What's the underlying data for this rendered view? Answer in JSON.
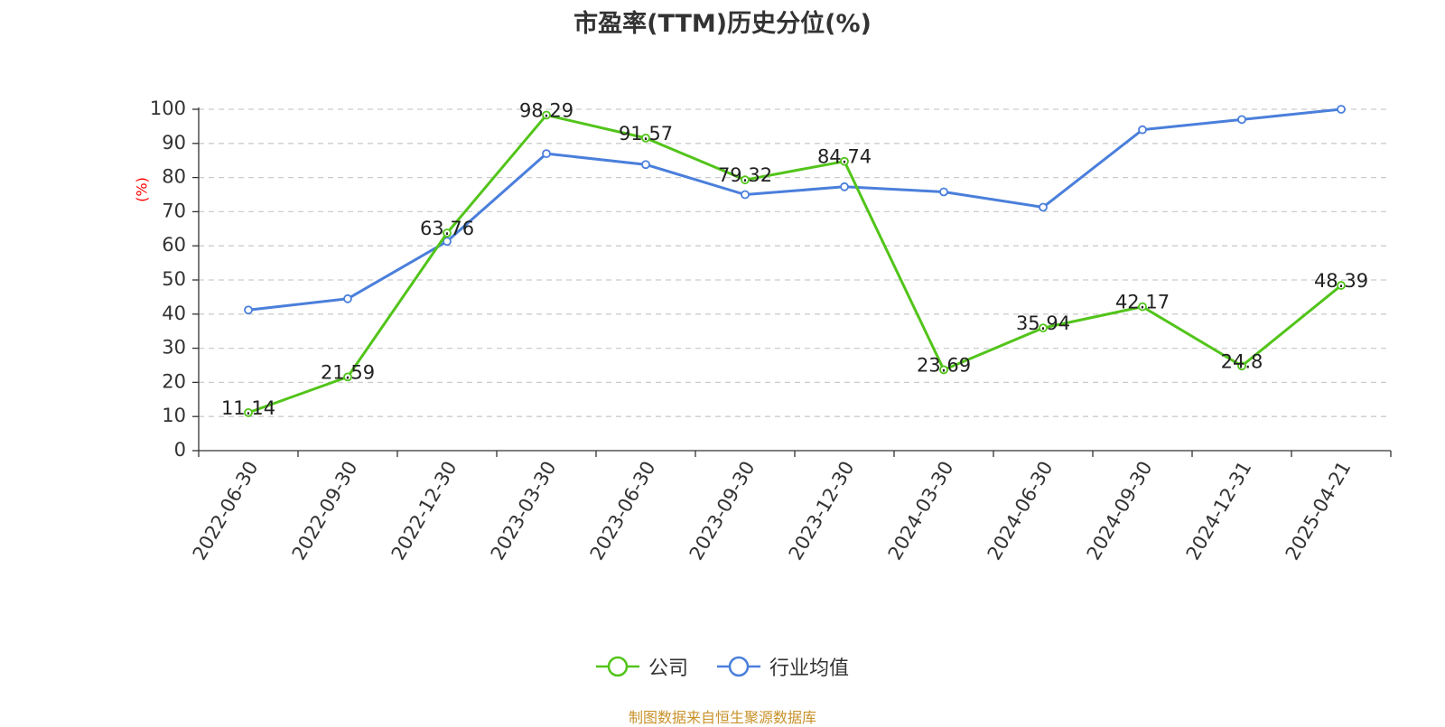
{
  "title": "市盈率(TTM)历史分位(%)",
  "source": "制图数据来自恒生聚源数据库",
  "colors": {
    "company": "#52c41a",
    "industry": "#4a7fdb",
    "y_unit": "#ff0000",
    "axis": "#333333",
    "grid": "#cccccc",
    "source": "#c8922a"
  },
  "chart_data": {
    "type": "line",
    "title": "市盈率(TTM)历史分位(%)",
    "ylabel": "(%)",
    "xlabel": "",
    "ylim": [
      0,
      100
    ],
    "yticks": [
      0,
      10,
      20,
      30,
      40,
      50,
      60,
      70,
      80,
      90,
      100
    ],
    "grid": true,
    "legend_position": "bottom",
    "categories": [
      "2022-06-30",
      "2022-09-30",
      "2022-12-30",
      "2023-03-30",
      "2023-06-30",
      "2023-09-30",
      "2023-12-30",
      "2024-03-30",
      "2024-06-30",
      "2024-09-30",
      "2024-12-31",
      "2025-04-21"
    ],
    "series": [
      {
        "name": "公司",
        "values": [
          11.14,
          21.59,
          63.76,
          98.29,
          91.57,
          79.32,
          84.74,
          23.69,
          35.94,
          42.17,
          24.8,
          48.39
        ],
        "labels": [
          "11.14",
          "21.59",
          "63.76",
          "98.29",
          "91.57",
          "79.32",
          "84.74",
          "23.69",
          "35.94",
          "42.17",
          "24.8",
          "48.39"
        ],
        "show_labels": true
      },
      {
        "name": "行业均值",
        "values": [
          41.2,
          44.5,
          61.3,
          87.0,
          83.8,
          75.0,
          77.3,
          75.8,
          71.3,
          94.0,
          97.0,
          100.0
        ],
        "show_labels": false
      }
    ]
  }
}
